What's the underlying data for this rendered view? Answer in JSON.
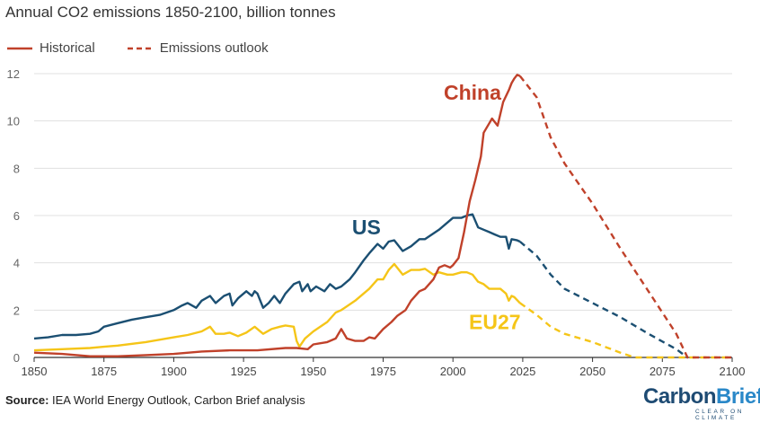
{
  "title": "Annual CO2 emissions 1850-2100, billion tonnes",
  "legend": {
    "historical": "Historical",
    "outlook": "Emissions outlook"
  },
  "source": {
    "label": "Source:",
    "text": " IEA World Energy Outlook, Carbon Brief analysis"
  },
  "logo": {
    "name_part1": "Carbon",
    "name_part2": "Brief",
    "tagline": "CLEAR ON CLIMATE"
  },
  "colors": {
    "china": "#c0412a",
    "us": "#1b4f72",
    "eu27": "#f5c518",
    "grid": "#e0e0e0",
    "axis": "#333333"
  },
  "chart_data": {
    "type": "line",
    "title": "Annual CO2 emissions 1850-2100, billion tonnes",
    "xlim": [
      1850,
      2100
    ],
    "ylim": [
      0,
      12
    ],
    "x_ticks": [
      1850,
      1875,
      1900,
      1925,
      1950,
      1975,
      2000,
      2025,
      2050,
      2075,
      2100
    ],
    "y_ticks": [
      0,
      2,
      4,
      6,
      8,
      10,
      12
    ],
    "grid": "horizontal",
    "legend_position": "top-left",
    "series": [
      {
        "name": "China",
        "color_key": "china",
        "historical": [
          [
            1850,
            0.2
          ],
          [
            1860,
            0.15
          ],
          [
            1870,
            0.05
          ],
          [
            1880,
            0.05
          ],
          [
            1890,
            0.1
          ],
          [
            1900,
            0.15
          ],
          [
            1910,
            0.25
          ],
          [
            1920,
            0.3
          ],
          [
            1930,
            0.3
          ],
          [
            1940,
            0.4
          ],
          [
            1944,
            0.4
          ],
          [
            1948,
            0.35
          ],
          [
            1950,
            0.55
          ],
          [
            1955,
            0.65
          ],
          [
            1958,
            0.8
          ],
          [
            1960,
            1.2
          ],
          [
            1962,
            0.8
          ],
          [
            1965,
            0.7
          ],
          [
            1968,
            0.7
          ],
          [
            1970,
            0.85
          ],
          [
            1972,
            0.8
          ],
          [
            1975,
            1.2
          ],
          [
            1978,
            1.5
          ],
          [
            1980,
            1.75
          ],
          [
            1983,
            2.0
          ],
          [
            1985,
            2.4
          ],
          [
            1988,
            2.8
          ],
          [
            1990,
            2.9
          ],
          [
            1993,
            3.3
          ],
          [
            1995,
            3.8
          ],
          [
            1997,
            3.9
          ],
          [
            1999,
            3.8
          ],
          [
            2000,
            3.9
          ],
          [
            2002,
            4.2
          ],
          [
            2004,
            5.3
          ],
          [
            2006,
            6.6
          ],
          [
            2008,
            7.5
          ],
          [
            2010,
            8.5
          ],
          [
            2011,
            9.5
          ],
          [
            2013,
            9.9
          ],
          [
            2014,
            10.1
          ],
          [
            2016,
            9.8
          ],
          [
            2018,
            10.8
          ],
          [
            2020,
            11.3
          ],
          [
            2021,
            11.6
          ],
          [
            2022,
            11.8
          ],
          [
            2023,
            11.95
          ],
          [
            2024,
            11.9
          ]
        ],
        "outlook": [
          [
            2024,
            11.9
          ],
          [
            2026,
            11.6
          ],
          [
            2028,
            11.3
          ],
          [
            2030,
            11.0
          ],
          [
            2035,
            9.3
          ],
          [
            2040,
            8.2
          ],
          [
            2050,
            6.5
          ],
          [
            2060,
            4.6
          ],
          [
            2070,
            2.8
          ],
          [
            2080,
            1.0
          ],
          [
            2084,
            0.0
          ],
          [
            2100,
            0.0
          ]
        ]
      },
      {
        "name": "US",
        "color_key": "us",
        "historical": [
          [
            1850,
            0.8
          ],
          [
            1855,
            0.85
          ],
          [
            1860,
            0.95
          ],
          [
            1865,
            0.95
          ],
          [
            1870,
            1.0
          ],
          [
            1873,
            1.1
          ],
          [
            1875,
            1.3
          ],
          [
            1880,
            1.45
          ],
          [
            1885,
            1.6
          ],
          [
            1890,
            1.7
          ],
          [
            1895,
            1.8
          ],
          [
            1900,
            2.0
          ],
          [
            1903,
            2.2
          ],
          [
            1905,
            2.3
          ],
          [
            1908,
            2.1
          ],
          [
            1910,
            2.4
          ],
          [
            1913,
            2.6
          ],
          [
            1915,
            2.3
          ],
          [
            1918,
            2.6
          ],
          [
            1920,
            2.7
          ],
          [
            1921,
            2.2
          ],
          [
            1923,
            2.5
          ],
          [
            1926,
            2.8
          ],
          [
            1928,
            2.6
          ],
          [
            1929,
            2.8
          ],
          [
            1930,
            2.7
          ],
          [
            1932,
            2.1
          ],
          [
            1934,
            2.3
          ],
          [
            1936,
            2.6
          ],
          [
            1938,
            2.3
          ],
          [
            1940,
            2.7
          ],
          [
            1943,
            3.1
          ],
          [
            1945,
            3.2
          ],
          [
            1946,
            2.8
          ],
          [
            1948,
            3.1
          ],
          [
            1949,
            2.8
          ],
          [
            1951,
            3.0
          ],
          [
            1954,
            2.8
          ],
          [
            1956,
            3.1
          ],
          [
            1958,
            2.9
          ],
          [
            1960,
            3.0
          ],
          [
            1963,
            3.3
          ],
          [
            1965,
            3.6
          ],
          [
            1968,
            4.1
          ],
          [
            1970,
            4.4
          ],
          [
            1973,
            4.8
          ],
          [
            1975,
            4.6
          ],
          [
            1977,
            4.9
          ],
          [
            1979,
            4.95
          ],
          [
            1982,
            4.5
          ],
          [
            1985,
            4.7
          ],
          [
            1988,
            5.0
          ],
          [
            1990,
            5.0
          ],
          [
            1995,
            5.4
          ],
          [
            2000,
            5.9
          ],
          [
            2003,
            5.9
          ],
          [
            2005,
            6.0
          ],
          [
            2007,
            6.05
          ],
          [
            2009,
            5.5
          ],
          [
            2011,
            5.4
          ],
          [
            2013,
            5.3
          ],
          [
            2015,
            5.2
          ],
          [
            2017,
            5.1
          ],
          [
            2019,
            5.1
          ],
          [
            2020,
            4.6
          ],
          [
            2021,
            5.0
          ],
          [
            2023,
            4.95
          ],
          [
            2024,
            4.9
          ]
        ],
        "outlook": [
          [
            2024,
            4.9
          ],
          [
            2030,
            4.3
          ],
          [
            2035,
            3.5
          ],
          [
            2040,
            2.9
          ],
          [
            2045,
            2.6
          ],
          [
            2050,
            2.3
          ],
          [
            2060,
            1.7
          ],
          [
            2070,
            1.0
          ],
          [
            2080,
            0.35
          ],
          [
            2084,
            0.0
          ]
        ]
      },
      {
        "name": "EU27",
        "color_key": "eu27",
        "historical": [
          [
            1850,
            0.3
          ],
          [
            1860,
            0.35
          ],
          [
            1870,
            0.4
          ],
          [
            1875,
            0.45
          ],
          [
            1880,
            0.5
          ],
          [
            1890,
            0.65
          ],
          [
            1900,
            0.85
          ],
          [
            1905,
            0.95
          ],
          [
            1910,
            1.1
          ],
          [
            1913,
            1.3
          ],
          [
            1915,
            1.0
          ],
          [
            1918,
            1.0
          ],
          [
            1920,
            1.05
          ],
          [
            1923,
            0.9
          ],
          [
            1926,
            1.05
          ],
          [
            1929,
            1.3
          ],
          [
            1932,
            1.0
          ],
          [
            1935,
            1.2
          ],
          [
            1938,
            1.3
          ],
          [
            1940,
            1.35
          ],
          [
            1943,
            1.3
          ],
          [
            1944,
            0.7
          ],
          [
            1945,
            0.45
          ],
          [
            1947,
            0.8
          ],
          [
            1950,
            1.1
          ],
          [
            1955,
            1.5
          ],
          [
            1958,
            1.9
          ],
          [
            1960,
            2.0
          ],
          [
            1965,
            2.4
          ],
          [
            1970,
            2.9
          ],
          [
            1973,
            3.3
          ],
          [
            1975,
            3.3
          ],
          [
            1977,
            3.7
          ],
          [
            1979,
            3.95
          ],
          [
            1982,
            3.5
          ],
          [
            1985,
            3.7
          ],
          [
            1988,
            3.7
          ],
          [
            1990,
            3.75
          ],
          [
            1993,
            3.5
          ],
          [
            1995,
            3.6
          ],
          [
            1998,
            3.5
          ],
          [
            2000,
            3.5
          ],
          [
            2003,
            3.6
          ],
          [
            2005,
            3.6
          ],
          [
            2007,
            3.5
          ],
          [
            2009,
            3.2
          ],
          [
            2011,
            3.1
          ],
          [
            2013,
            2.9
          ],
          [
            2015,
            2.9
          ],
          [
            2017,
            2.9
          ],
          [
            2019,
            2.7
          ],
          [
            2020,
            2.4
          ],
          [
            2021,
            2.6
          ],
          [
            2022,
            2.55
          ],
          [
            2024,
            2.3
          ]
        ],
        "outlook": [
          [
            2024,
            2.3
          ],
          [
            2030,
            1.8
          ],
          [
            2035,
            1.3
          ],
          [
            2040,
            1.0
          ],
          [
            2050,
            0.65
          ],
          [
            2060,
            0.2
          ],
          [
            2065,
            0.0
          ],
          [
            2100,
            0.0
          ]
        ]
      }
    ],
    "annotations": [
      {
        "text": "China",
        "color_key": "china",
        "x": 2007,
        "y": 10.9
      },
      {
        "text": "US",
        "color_key": "us",
        "x": 1969,
        "y": 5.2
      },
      {
        "text": "EU27",
        "color_key": "eu27",
        "x": 2015,
        "y": 1.2
      }
    ]
  }
}
